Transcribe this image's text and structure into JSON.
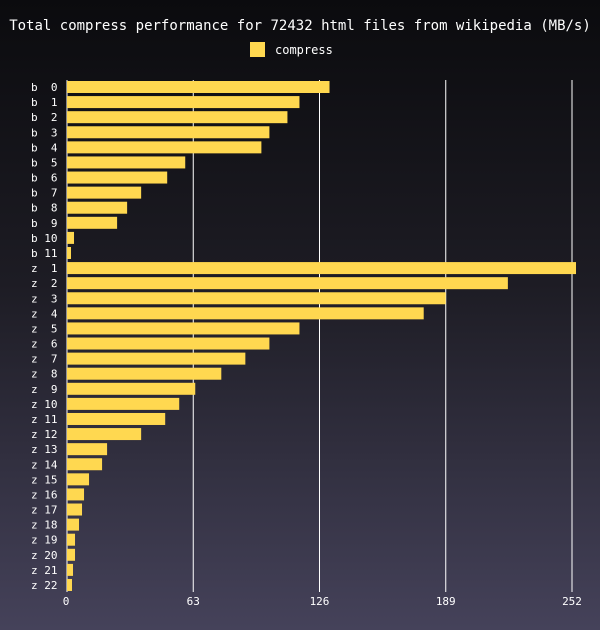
{
  "chart_data": {
    "type": "bar",
    "orientation": "horizontal",
    "title": "Total compress performance for 72432 html files from wikipedia (MB/s)",
    "legend": {
      "placement": "top-center",
      "entries": [
        "compress"
      ]
    },
    "series": [
      {
        "name": "compress",
        "color": "#ffd850",
        "values": [
          131,
          116,
          110,
          101,
          97,
          59,
          50,
          37,
          30,
          25,
          3.5,
          2,
          254,
          220,
          189,
          178,
          116,
          101,
          89,
          77,
          64,
          56,
          49,
          37,
          20,
          17.5,
          11,
          8.5,
          7.5,
          6,
          4,
          4,
          3,
          2.5
        ]
      }
    ],
    "categories": [
      "b  0",
      "b  1",
      "b  2",
      "b  3",
      "b  4",
      "b  5",
      "b  6",
      "b  7",
      "b  8",
      "b  9",
      "b 10",
      "b 11",
      "z  1",
      "z  2",
      "z  3",
      "z  4",
      "z  5",
      "z  6",
      "z  7",
      "z  8",
      "z  9",
      "z 10",
      "z 11",
      "z 12",
      "z 13",
      "z 14",
      "z 15",
      "z 16",
      "z 17",
      "z 18",
      "z 19",
      "z 20",
      "z 21",
      "z 22"
    ],
    "xlim": [
      0,
      252
    ],
    "x_ticks": [
      0,
      63,
      126,
      189,
      252
    ],
    "x_tick_labels": [
      "0",
      "63",
      "126",
      "189",
      "252"
    ],
    "grid": true
  }
}
